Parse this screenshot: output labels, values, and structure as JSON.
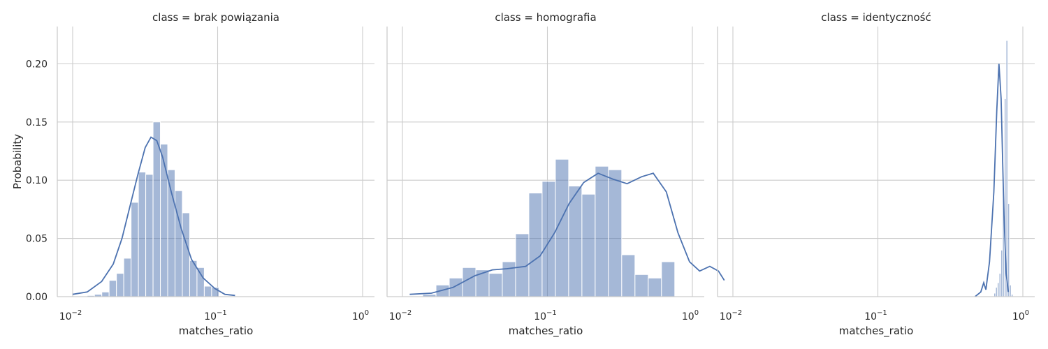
{
  "chart_data": {
    "type": "histogram",
    "x_scale": "log",
    "xlabel": "matches_ratio",
    "ylabel": "Probability",
    "xlim": [
      0.01,
      1
    ],
    "ylim": [
      0,
      0.232
    ],
    "x_ticks": [
      0.01,
      0.1,
      1
    ],
    "x_tick_labels": [
      {
        "base": "10",
        "exp": "−2"
      },
      {
        "base": "10",
        "exp": "−1"
      },
      {
        "base": "10",
        "exp": "0"
      }
    ],
    "y_ticks": [
      0,
      0.05,
      0.1,
      0.15,
      0.2
    ],
    "y_tick_labels": [
      "0.00",
      "0.05",
      "0.10",
      "0.15",
      "0.20"
    ],
    "grid": true,
    "color": "#4c72b0",
    "panels": [
      {
        "title": "class = brak powiązania",
        "bins": {
          "log10_start": -1.9,
          "log10_width": 0.0505,
          "values": [
            0.001,
            0.002,
            0.004,
            0.014,
            0.02,
            0.033,
            0.081,
            0.107,
            0.105,
            0.15,
            0.131,
            0.109,
            0.091,
            0.072,
            0.031,
            0.025,
            0.009,
            0.008
          ]
        },
        "kde": [
          [
            -2.0,
            0.002
          ],
          [
            -1.9,
            0.004
          ],
          [
            -1.8,
            0.013
          ],
          [
            -1.72,
            0.028
          ],
          [
            -1.66,
            0.05
          ],
          [
            -1.6,
            0.08
          ],
          [
            -1.55,
            0.105
          ],
          [
            -1.5,
            0.128
          ],
          [
            -1.46,
            0.137
          ],
          [
            -1.42,
            0.134
          ],
          [
            -1.38,
            0.12
          ],
          [
            -1.32,
            0.09
          ],
          [
            -1.25,
            0.058
          ],
          [
            -1.18,
            0.032
          ],
          [
            -1.1,
            0.016
          ],
          [
            -1.02,
            0.007
          ],
          [
            -0.95,
            0.002
          ],
          [
            -0.88,
            0.001
          ]
        ]
      },
      {
        "title": "class = homografia",
        "bins": {
          "log10_start": -1.86,
          "log10_width": 0.0915,
          "values": [
            0.002,
            0.01,
            0.016,
            0.025,
            0.023,
            0.02,
            0.03,
            0.054,
            0.089,
            0.099,
            0.118,
            0.095,
            0.088,
            0.112,
            0.109,
            0.036,
            0.019,
            0.016,
            0.03
          ]
        },
        "kde": [
          [
            -1.95,
            0.002
          ],
          [
            -1.8,
            0.003
          ],
          [
            -1.65,
            0.008
          ],
          [
            -1.5,
            0.018
          ],
          [
            -1.38,
            0.023
          ],
          [
            -1.28,
            0.024
          ],
          [
            -1.15,
            0.026
          ],
          [
            -1.05,
            0.035
          ],
          [
            -0.95,
            0.055
          ],
          [
            -0.85,
            0.08
          ],
          [
            -0.75,
            0.098
          ],
          [
            -0.65,
            0.106
          ],
          [
            -0.55,
            0.101
          ],
          [
            -0.45,
            0.097
          ],
          [
            -0.35,
            0.103
          ],
          [
            -0.27,
            0.106
          ],
          [
            -0.18,
            0.09
          ],
          [
            -0.1,
            0.055
          ],
          [
            -0.02,
            0.03
          ],
          [
            0.05,
            0.022
          ],
          [
            0.12,
            0.026
          ],
          [
            0.18,
            0.022
          ],
          [
            0.22,
            0.014
          ]
        ]
      },
      {
        "title": "class = identyczność",
        "bins": {
          "log10_start": -0.2,
          "log10_width": 0.012,
          "values": [
            0.003,
            0.008,
            0.012,
            0.02,
            0.04,
            0.09,
            0.17,
            0.22,
            0.08,
            0.01,
            0.002
          ]
        },
        "kde": [
          [
            -0.33,
            0.0
          ],
          [
            -0.29,
            0.004
          ],
          [
            -0.27,
            0.012
          ],
          [
            -0.255,
            0.006
          ],
          [
            -0.23,
            0.03
          ],
          [
            -0.2,
            0.09
          ],
          [
            -0.18,
            0.16
          ],
          [
            -0.165,
            0.2
          ],
          [
            -0.15,
            0.17
          ],
          [
            -0.13,
            0.07
          ],
          [
            -0.115,
            0.02
          ],
          [
            -0.1,
            0.004
          ]
        ]
      }
    ]
  }
}
